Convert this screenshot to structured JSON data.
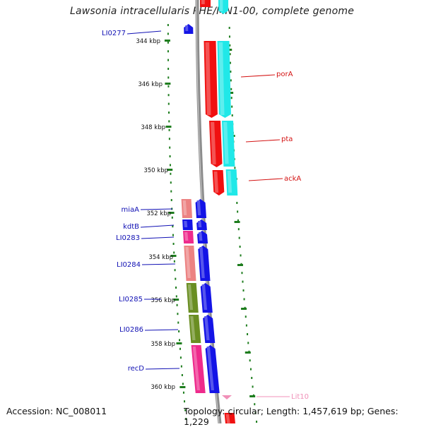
{
  "title": "Lawsonia intracellularis PHE/MN1-00, complete genome",
  "footer": {
    "accession": "Accession: NC_008011",
    "topology": "Topology: circular; Length: 1,457,619 bp; Genes: 1,229"
  },
  "colors": {
    "backbone": "#8c8c8c",
    "tick": "#1e7d1e",
    "red": "#f01010",
    "cyan": "#20e8e8",
    "blue": "#1414e6",
    "salmon": "#ec8282",
    "magenta": "#ee2a8c",
    "olive": "#6a8e22",
    "label_blue": "#1010b4",
    "label_red": "#d41414",
    "label_pink": "#f090b8"
  },
  "kbp_labels": [
    "344 kbp",
    "346 kbp",
    "348 kbp",
    "350 kbp",
    "352 kbp",
    "354 kbp",
    "356 kbp",
    "358 kbp",
    "360 kbp"
  ],
  "genes_left": [
    {
      "name": "LI0277",
      "strand": "reverse"
    },
    {
      "name": "miaA",
      "strand": "forward"
    },
    {
      "name": "kdtB",
      "strand": "forward"
    },
    {
      "name": "LI0283",
      "strand": "forward"
    },
    {
      "name": "LI0284",
      "strand": "forward"
    },
    {
      "name": "LI0285",
      "strand": "forward"
    },
    {
      "name": "LI0286",
      "strand": "forward"
    },
    {
      "name": "recD",
      "strand": "forward"
    }
  ],
  "genes_right": [
    {
      "name": "porA",
      "strand": "reverse"
    },
    {
      "name": "pta",
      "strand": "reverse"
    },
    {
      "name": "ackA",
      "strand": "reverse"
    },
    {
      "name": "Lit10",
      "strand": "reverse"
    }
  ]
}
